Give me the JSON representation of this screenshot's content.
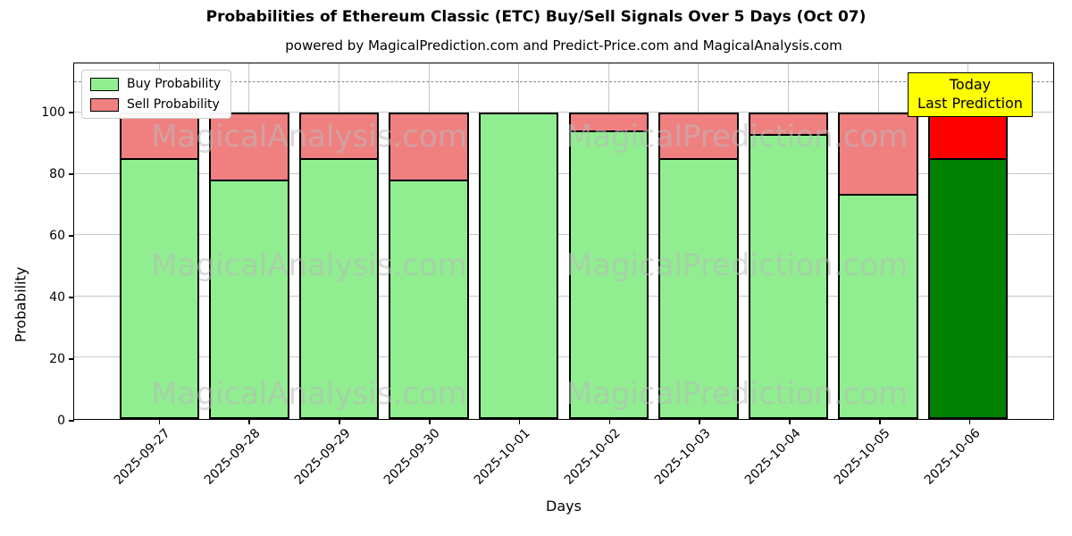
{
  "title": "Probabilities of Ethereum Classic (ETC) Buy/Sell Signals Over 5 Days (Oct 07)",
  "subtitle": "powered by MagicalPrediction.com and Predict-Price.com and MagicalAnalysis.com",
  "axes": {
    "xlabel": "Days",
    "ylabel": "Probability",
    "yticks": [
      0,
      20,
      40,
      60,
      80,
      100
    ],
    "ylim": [
      0,
      116
    ],
    "dashed_line_y": 110
  },
  "legend": {
    "items": [
      {
        "label": "Buy Probability",
        "color": "#90ee90"
      },
      {
        "label": "Sell Probability",
        "color": "#f08080"
      }
    ]
  },
  "annotation": {
    "line1": "Today",
    "line2": "Last Prediction",
    "bg_color": "#ffff00"
  },
  "watermarks": [
    "MagicalAnalysis.com",
    "MagicalPrediction.com"
  ],
  "chart_data": {
    "type": "bar",
    "stacked": true,
    "title": "Probabilities of Ethereum Classic (ETC) Buy/Sell Signals Over 5 Days (Oct 07)",
    "xlabel": "Days",
    "ylabel": "Probability",
    "ylim": [
      0,
      116
    ],
    "grid": true,
    "legend_position": "upper left",
    "categories": [
      "2025-09-27",
      "2025-09-28",
      "2025-09-29",
      "2025-09-30",
      "2025-10-01",
      "2025-10-02",
      "2025-10-03",
      "2025-10-04",
      "2025-10-05",
      "2025-10-06"
    ],
    "series": [
      {
        "name": "Buy Probability",
        "color": "#90ee90",
        "values": [
          85,
          78,
          85,
          78,
          100,
          94,
          85,
          93,
          73,
          85
        ]
      },
      {
        "name": "Sell Probability",
        "color": "#f08080",
        "values": [
          15,
          22,
          15,
          22,
          0,
          6,
          15,
          7,
          27,
          15
        ]
      }
    ],
    "today_index": 9,
    "today_colors": {
      "buy": "#008000",
      "sell": "#ff0000"
    },
    "bar_edge_color": "#000000",
    "dashed_line_y": 110
  }
}
